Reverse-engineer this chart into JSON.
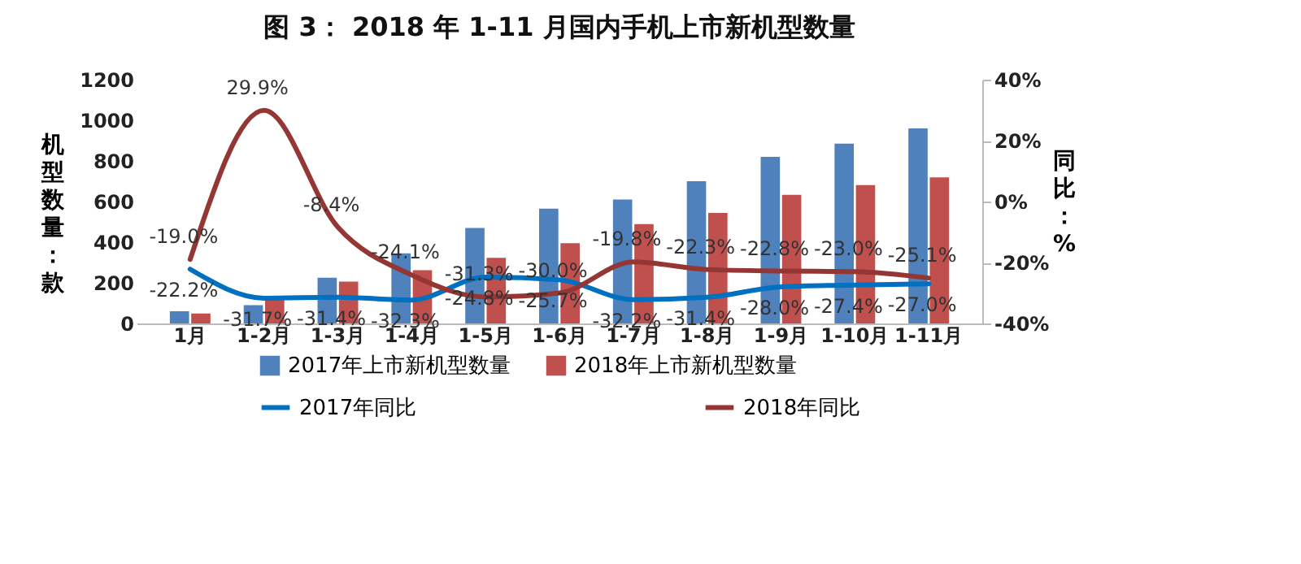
{
  "chart_data": {
    "type": "bar",
    "title": "图 3： 2018 年 1-11 月国内手机上市新机型数量",
    "ylabel": "机型数量：款",
    "y2label": "同比：%",
    "categories": [
      "1月",
      "1-2月",
      "1-3月",
      "1-4月",
      "1-5月",
      "1-6月",
      "1-7月",
      "1-8月",
      "1-9月",
      "1-10月",
      "1-11月"
    ],
    "series": [
      {
        "name": "2017年上市新机型数量",
        "color": "#4f81bd",
        "values": [
          60,
          90,
          225,
          345,
          470,
          565,
          610,
          700,
          820,
          885,
          960
        ]
      },
      {
        "name": "2018年上市新机型数量",
        "color": "#c0504d",
        "values": [
          49,
          117,
          206,
          262,
          323,
          395,
          489,
          544,
          633,
          681,
          719
        ]
      },
      {
        "name": "2017年同比",
        "type": "line",
        "axis": "y2",
        "color": "#0070c0",
        "values": [
          -22.2,
          -31.7,
          -31.4,
          -32.3,
          -24.8,
          -25.7,
          -32.2,
          -31.4,
          -28.0,
          -27.4,
          -27.0
        ],
        "value_labels": [
          "-22.2%",
          "-31.7%",
          "-31.4%",
          "-32.3%",
          "-24.8%",
          "-25.7%",
          "-32.2%",
          "-31.4%",
          "-28.0%",
          "-27.4%",
          "-27.0%"
        ]
      },
      {
        "name": "2018年同比",
        "type": "line",
        "axis": "y2",
        "color": "#943634",
        "values": [
          -19.0,
          29.9,
          -8.4,
          -24.1,
          -31.3,
          -30.0,
          -19.8,
          -22.3,
          -22.8,
          -23.0,
          -25.1
        ],
        "value_labels": [
          "-19.0%",
          "29.9%",
          "-8.4%",
          "-24.1%",
          "-31.3%",
          "-30.0%",
          "-19.8%",
          "-22.3%",
          "-22.8%",
          "-23.0%",
          "-25.1%"
        ]
      }
    ],
    "ylim": [
      0,
      1200
    ],
    "yticks": [
      0,
      200,
      400,
      600,
      800,
      1000,
      1200
    ],
    "y2lim": [
      -40,
      40
    ],
    "y2ticks": [
      {
        "value": -40,
        "label": "-40%"
      },
      {
        "value": -20,
        "label": "-20%"
      },
      {
        "value": 0,
        "label": "0%"
      },
      {
        "value": 20,
        "label": "20%"
      },
      {
        "value": 40,
        "label": "40%"
      }
    ],
    "grid": false,
    "legend": "bottom"
  }
}
